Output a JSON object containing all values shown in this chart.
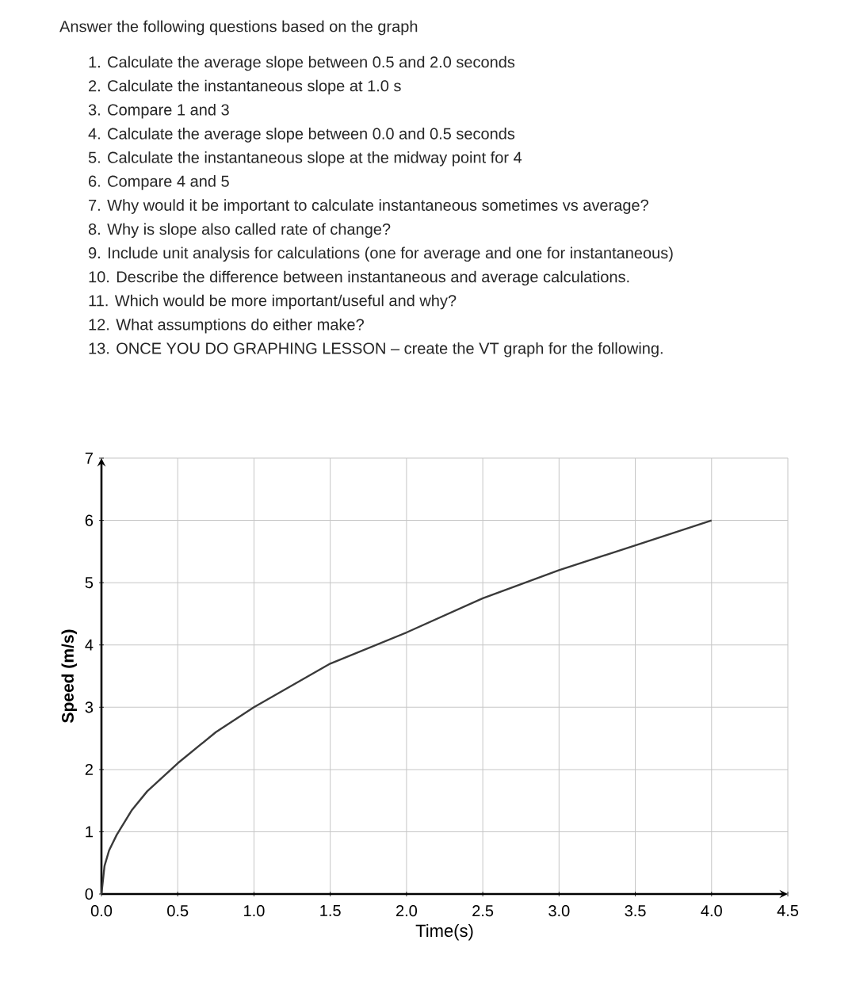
{
  "chart_data": {
    "type": "line",
    "title": "Answer the following questions based on the graph",
    "annotations": [
      "1. Calculate the average slope between 0.5 and 2.0 seconds",
      "2. Calculate the instantaneous slope at 1.0 s",
      "3. Compare 1 and 3",
      "4. Calculate the average slope between 0.0 and 0.5 seconds",
      "5. Calculate the instantaneous slope at the midway point for 4",
      "6. Compare 4 and 5",
      "7. Why would it be important to calculate instantaneous sometimes vs average?",
      "8. Why is slope also called rate of change?",
      "9. Include unit analysis for calculations (one for average and one for instantaneous)",
      "10. Describe the difference between instantaneous and average calculations.",
      "11. Which would be more important/useful and why?",
      "12. What assumptions do either make?",
      "13. ONCE YOU DO GRAPHING LESSON – create the VT graph for the following."
    ],
    "xlabel": "Time(s)",
    "ylabel": "Speed (m/s)",
    "x": [
      0,
      0.02,
      0.05,
      0.1,
      0.2,
      0.3,
      0.5,
      0.75,
      1.0,
      1.5,
      2.0,
      2.5,
      3.0,
      3.5,
      4.0
    ],
    "series": [
      {
        "color": "#3a3a3a",
        "values": [
          0,
          0.45,
          0.7,
          0.95,
          1.35,
          1.65,
          2.1,
          2.6,
          3.0,
          3.7,
          4.2,
          4.75,
          5.2,
          5.6,
          6.0
        ]
      }
    ],
    "xlim": [
      0,
      4.5
    ],
    "ylim": [
      0,
      7
    ],
    "xticks": [
      {
        "value": 0,
        "label": "0.0"
      },
      0.5,
      {
        "value": 1,
        "label": "1.0"
      },
      1.5,
      {
        "value": 2,
        "label": "2.0"
      },
      2.5,
      {
        "value": 3,
        "label": "3.0"
      },
      3.5,
      {
        "value": 4,
        "label": "4.0"
      },
      4.5
    ],
    "yticks": [
      0,
      1,
      2,
      3,
      4,
      5,
      6,
      7
    ],
    "grid": true,
    "marker": "none",
    "line_style": "solid"
  }
}
